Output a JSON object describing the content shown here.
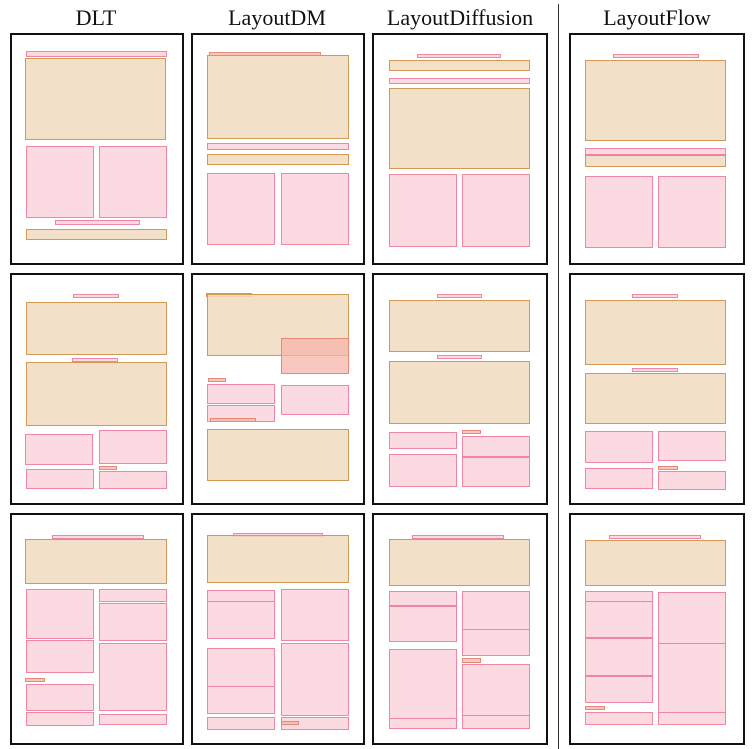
{
  "figure": {
    "columns": [
      "DLT",
      "LayoutDM",
      "LayoutDiffusion",
      "LayoutFlow"
    ],
    "palette": {
      "text": "#ef87a4",
      "image": "#d39a55",
      "small": "#e88876"
    },
    "element_types": [
      "text",
      "image",
      "small"
    ],
    "row_count": 3
  }
}
